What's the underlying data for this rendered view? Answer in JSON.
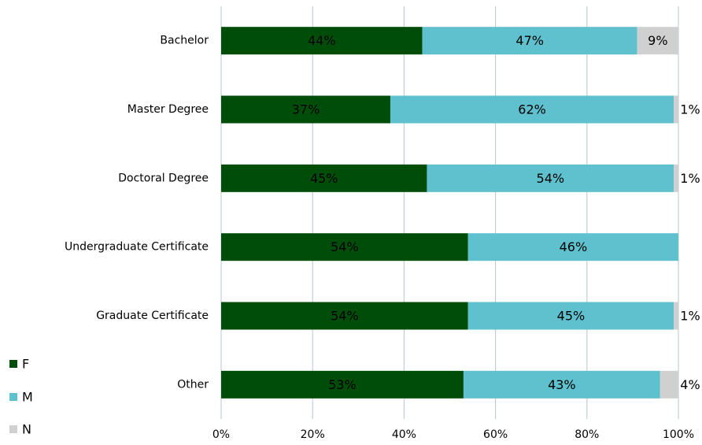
{
  "chart_data": {
    "type": "stacked_barh",
    "categories": [
      "Bachelor",
      "Master Degree",
      "Doctoral Degree",
      "Undergraduate Certificate",
      "Graduate Certificate",
      "Other"
    ],
    "series": [
      {
        "name": "F",
        "color": "#004d0a",
        "label_color": "#ffffff",
        "values": [
          44,
          37,
          45,
          54,
          54,
          53
        ],
        "value_labels": [
          "44%",
          "37%",
          "45%",
          "54%",
          "54%",
          "53%"
        ]
      },
      {
        "name": "M",
        "color": "#5fc0ce",
        "label_color": "#000000",
        "values": [
          47,
          62,
          54,
          46,
          45,
          43
        ],
        "value_labels": [
          "47%",
          "62%",
          "54%",
          "46%",
          "45%",
          "43%"
        ]
      },
      {
        "name": "N",
        "color": "#d0d0d0",
        "label_color": "#000000",
        "values": [
          9,
          1,
          1,
          null,
          1,
          4
        ],
        "value_labels": [
          "9%",
          "1%",
          "1%",
          null,
          "1%",
          "4%"
        ]
      }
    ],
    "xlim": [
      0,
      100
    ],
    "xticks": [
      {
        "value": 0,
        "label": "0%"
      },
      {
        "value": 20,
        "label": "20%"
      },
      {
        "value": 40,
        "label": "40%"
      },
      {
        "value": 60,
        "label": "60%"
      },
      {
        "value": 80,
        "label": "80%"
      },
      {
        "value": 100,
        "label": "100%"
      }
    ],
    "grid": true,
    "legend": "bottom-left"
  }
}
